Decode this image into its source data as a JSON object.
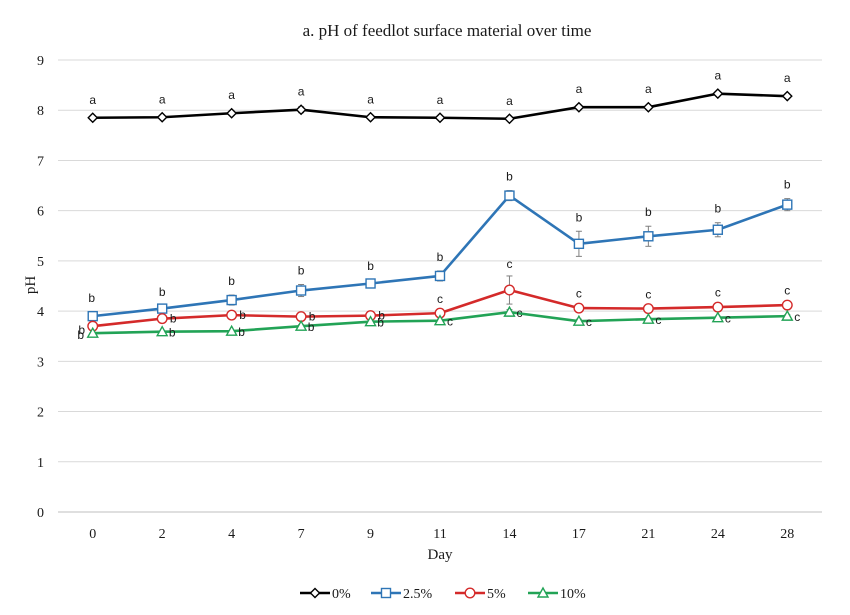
{
  "chart_data": {
    "type": "line",
    "title": "a. pH of feedlot surface material over time",
    "xlabel": "Day",
    "ylabel": "pH",
    "categories": [
      "0",
      "2",
      "4",
      "7",
      "9",
      "11",
      "14",
      "17",
      "21",
      "24",
      "28"
    ],
    "ylim": [
      0,
      9
    ],
    "yticks": [
      0,
      1,
      2,
      3,
      4,
      5,
      6,
      7,
      8,
      9
    ],
    "grid": "horizontal",
    "legend_position": "bottom",
    "series": [
      {
        "name": "0%",
        "color": "#000000",
        "marker": "diamond",
        "values": [
          7.85,
          7.86,
          7.94,
          8.01,
          7.86,
          7.85,
          7.83,
          8.06,
          8.06,
          8.33,
          8.28
        ],
        "errors": [
          0.03,
          0.03,
          0.04,
          0.06,
          0.04,
          0.03,
          0.03,
          0.04,
          0.04,
          0.04,
          0.04
        ],
        "sig_labels": [
          "a",
          "a",
          "a",
          "a",
          "a",
          "a",
          "a",
          "a",
          "a",
          "a",
          "a"
        ]
      },
      {
        "name": "2.5%",
        "color": "#2e75b6",
        "marker": "square",
        "values": [
          3.9,
          4.05,
          4.22,
          4.41,
          4.55,
          4.7,
          6.3,
          5.34,
          5.49,
          5.62,
          6.12
        ],
        "errors": [
          0.05,
          0.05,
          0.1,
          0.12,
          0.07,
          0.1,
          0.1,
          0.25,
          0.2,
          0.14,
          0.12
        ],
        "sig_labels": [
          "b",
          "b",
          "b",
          "b",
          "b",
          "b",
          "b",
          "b",
          "b",
          "b",
          "b"
        ]
      },
      {
        "name": "5%",
        "color": "#d42a2a",
        "marker": "circle",
        "values": [
          3.7,
          3.85,
          3.92,
          3.89,
          3.91,
          3.96,
          4.42,
          4.06,
          4.05,
          4.08,
          4.12
        ],
        "errors": [
          0.03,
          0.04,
          0.04,
          0.05,
          0.04,
          0.04,
          0.28,
          0.05,
          0.04,
          0.05,
          0.05
        ],
        "sig_labels": [
          "b",
          "b",
          "b",
          "b",
          "b",
          "c",
          "c",
          "c",
          "c",
          "c",
          "c"
        ]
      },
      {
        "name": "10%",
        "color": "#22a356",
        "marker": "triangle",
        "values": [
          3.56,
          3.59,
          3.6,
          3.7,
          3.79,
          3.81,
          3.98,
          3.8,
          3.84,
          3.87,
          3.9
        ],
        "errors": [
          0.02,
          0.02,
          0.02,
          0.03,
          0.03,
          0.03,
          0.05,
          0.04,
          0.03,
          0.03,
          0.03
        ],
        "sig_labels": [
          "b",
          "b",
          "b",
          "b",
          "b",
          "c",
          "c",
          "c",
          "c",
          "c",
          "c"
        ]
      }
    ]
  }
}
